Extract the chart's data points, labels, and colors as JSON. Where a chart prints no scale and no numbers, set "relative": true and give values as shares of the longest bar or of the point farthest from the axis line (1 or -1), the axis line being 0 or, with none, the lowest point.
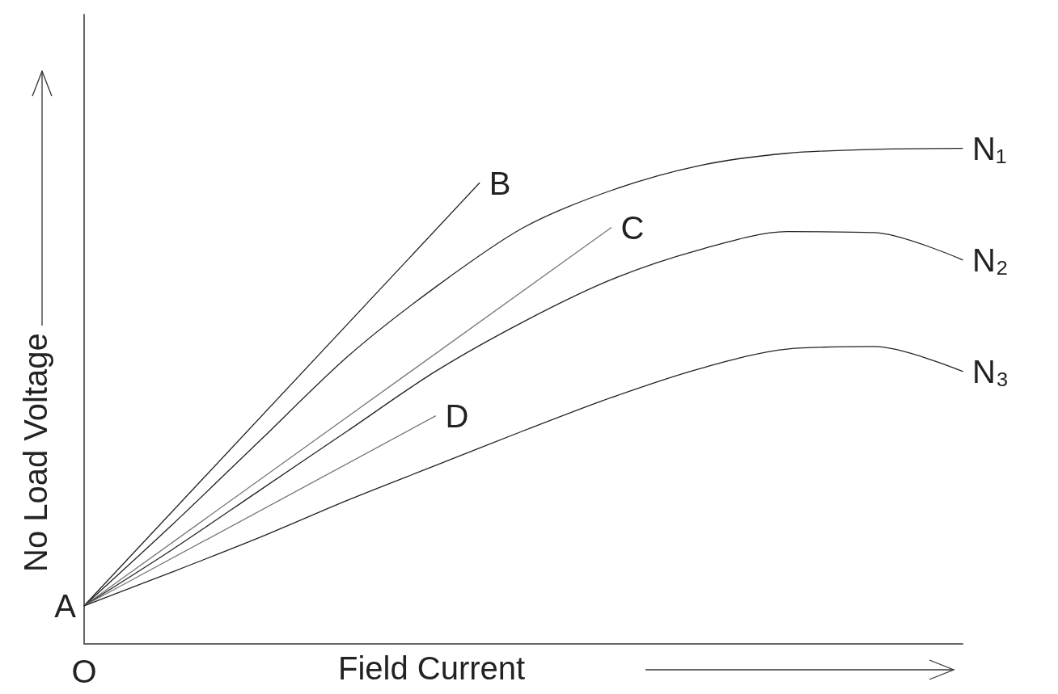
{
  "chart_data": {
    "type": "line",
    "relative": true,
    "xlabel": "Field Current",
    "ylabel": "No Load Voltage",
    "grid": false,
    "legend": false,
    "marker": "none",
    "line_style": "solid",
    "annotations": [
      "A",
      "O"
    ],
    "categories": [
      null,
      null,
      null,
      null,
      null,
      null,
      null,
      null,
      null,
      null,
      null,
      null,
      null,
      null,
      null,
      null,
      null,
      null,
      null,
      null,
      null
    ],
    "series": [
      {
        "name": "B",
        "color": "#222222",
        "values": [
          0.077,
          null,
          null,
          null,
          null,
          null,
          null,
          null,
          null,
          0.93,
          null,
          null,
          null,
          null,
          null,
          null,
          null,
          null,
          null,
          null,
          null
        ]
      },
      {
        "name": "N₁",
        "color": "#222222",
        "values": [
          0.077,
          null,
          0.24,
          null,
          0.41,
          null,
          0.58,
          null,
          0.72,
          null,
          0.84,
          null,
          0.915,
          null,
          0.965,
          null,
          0.99,
          null,
          0.998,
          null,
          1.0
        ]
      },
      {
        "name": "C",
        "color": "#777777",
        "values": [
          0.077,
          null,
          null,
          null,
          null,
          null,
          null,
          null,
          null,
          null,
          null,
          null,
          0.84,
          null,
          null,
          null,
          null,
          null,
          null,
          null,
          null
        ]
      },
      {
        "name": "N₂",
        "color": "#222222",
        "values": [
          0.077,
          null,
          0.19,
          null,
          0.31,
          null,
          0.43,
          null,
          0.55,
          null,
          0.65,
          null,
          0.735,
          null,
          0.795,
          null,
          0.832,
          null,
          0.83,
          null,
          0.775
        ]
      },
      {
        "name": "D",
        "color": "#777777",
        "values": [
          0.077,
          null,
          null,
          null,
          null,
          null,
          null,
          null,
          0.46,
          null,
          null,
          null,
          null,
          null,
          null,
          null,
          null,
          null,
          null,
          null,
          null
        ]
      },
      {
        "name": "N₃",
        "color": "#222222",
        "values": [
          0.077,
          null,
          0.145,
          null,
          0.215,
          null,
          0.29,
          null,
          0.36,
          null,
          0.43,
          null,
          0.497,
          null,
          0.555,
          null,
          0.595,
          null,
          0.6,
          null,
          0.55
        ]
      }
    ]
  }
}
